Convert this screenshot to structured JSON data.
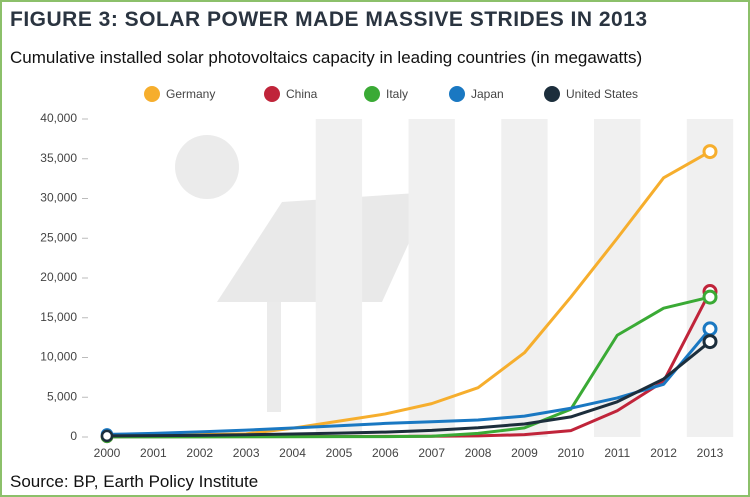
{
  "chart_data": {
    "type": "line",
    "title": "FIGURE 3: SOLAR POWER MADE MASSIVE STRIDES IN 2013",
    "subtitle": "Cumulative installed solar photovoltaics capacity in leading countries (in megawatts)",
    "source": "Source: BP, Earth Policy Institute",
    "categories": [
      "2000",
      "2001",
      "2002",
      "2003",
      "2004",
      "2005",
      "2006",
      "2007",
      "2008",
      "2009",
      "2010",
      "2011",
      "2012",
      "2013"
    ],
    "series": [
      {
        "name": "Germany",
        "color": "#f6ae2d",
        "values": [
          100,
          200,
          300,
          400,
          1100,
          2000,
          2900,
          4200,
          6200,
          10600,
          17600,
          25000,
          32600,
          35900
        ]
      },
      {
        "name": "China",
        "color": "#c0243a",
        "values": [
          20,
          30,
          40,
          50,
          60,
          70,
          80,
          100,
          140,
          300,
          800,
          3300,
          7000,
          18300
        ]
      },
      {
        "name": "Italy",
        "color": "#3aaa35",
        "values": [
          20,
          20,
          20,
          30,
          30,
          40,
          50,
          100,
          450,
          1150,
          3500,
          12800,
          16200,
          17600
        ]
      },
      {
        "name": "Japan",
        "color": "#1a78c2",
        "values": [
          330,
          450,
          640,
          860,
          1130,
          1420,
          1710,
          1920,
          2140,
          2630,
          3620,
          4910,
          6630,
          13600
        ]
      },
      {
        "name": "United States",
        "color": "#1c2e3c",
        "values": [
          140,
          170,
          210,
          280,
          370,
          480,
          620,
          830,
          1170,
          1640,
          2530,
          4430,
          7300,
          12000
        ]
      }
    ],
    "ylim": [
      0,
      40000
    ],
    "yticks": [
      0,
      {
        "value": 5000,
        "label": "5,000"
      },
      {
        "value": 10000,
        "label": "10,000"
      },
      {
        "value": 15000,
        "label": "15,000"
      },
      {
        "value": 20000,
        "label": "20,000"
      },
      {
        "value": 25000,
        "label": "25,000"
      },
      {
        "value": 30000,
        "label": "30,000"
      },
      {
        "value": 35000,
        "label": "35,000"
      },
      {
        "value": 40000,
        "label": "40,000"
      }
    ]
  }
}
